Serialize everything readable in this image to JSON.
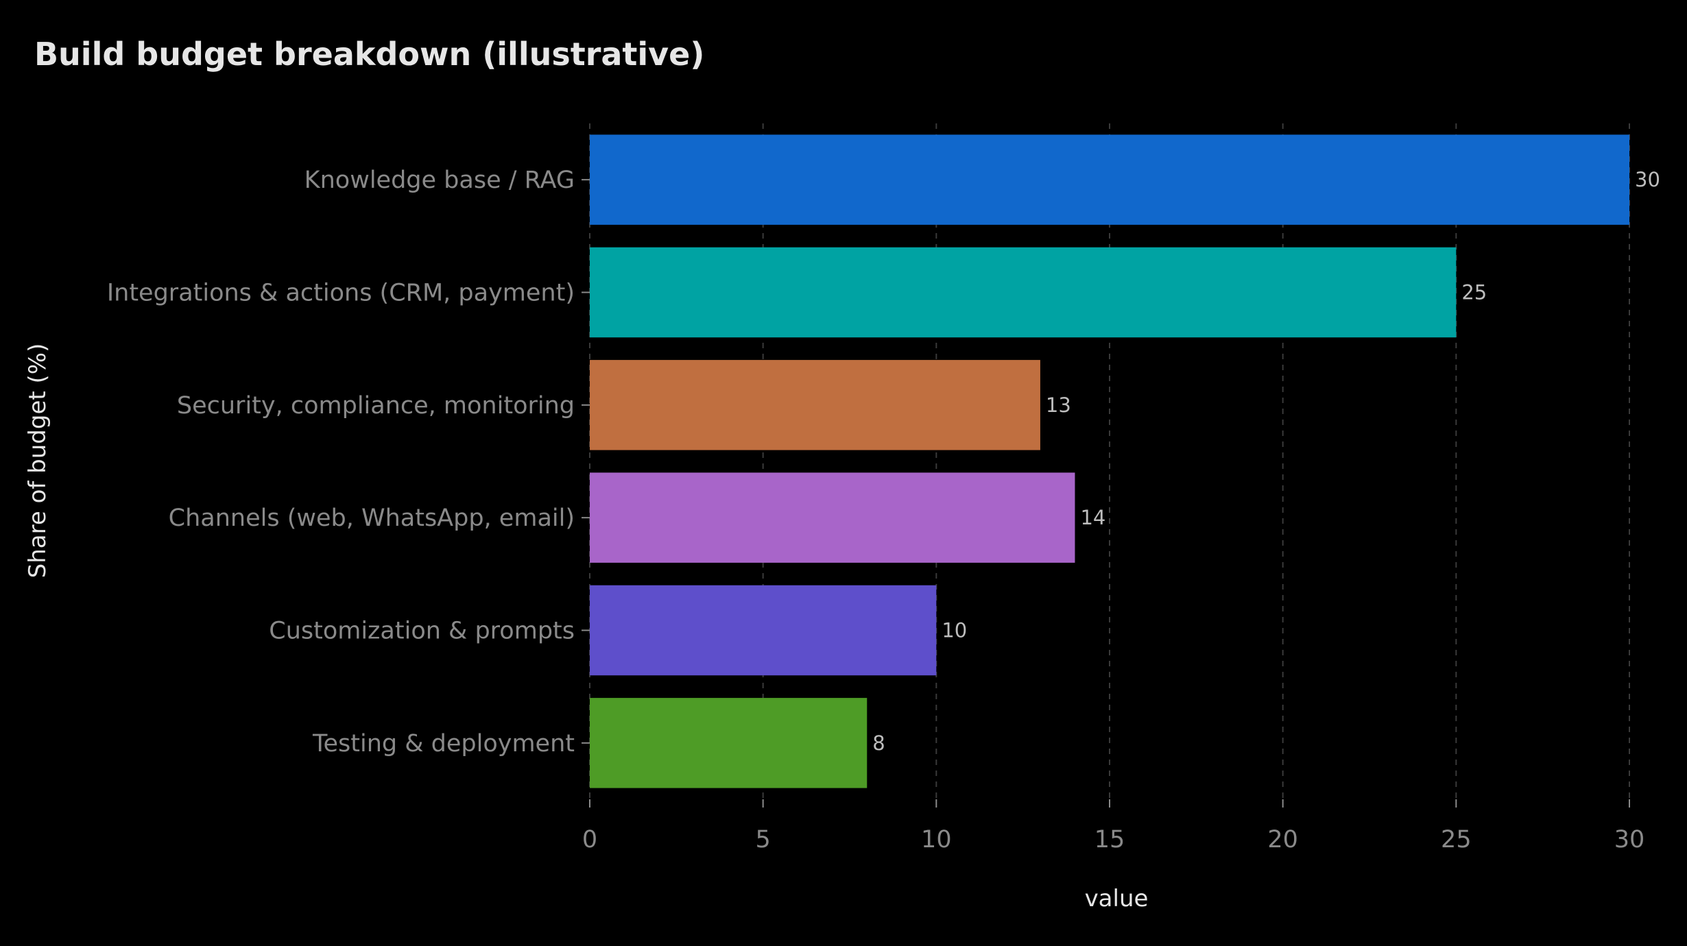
{
  "chart_data": {
    "type": "bar",
    "orientation": "horizontal",
    "title": "Build budget breakdown (illustrative)",
    "xlabel": "value",
    "ylabel": "Share of budget (%)",
    "categories": [
      "Knowledge base / RAG",
      "Integrations & actions (CRM, payment)",
      "Security, compliance, monitoring",
      "Channels (web, WhatsApp, email)",
      "Customization & prompts",
      "Testing & deployment"
    ],
    "values": [
      30,
      25,
      13,
      14,
      10,
      8
    ],
    "colors": [
      "#1168cc",
      "#00a3a3",
      "#c06f40",
      "#a865c9",
      "#5e4fcb",
      "#4e9c26"
    ],
    "xlim": [
      0,
      30
    ],
    "xticks": [
      0,
      5,
      10,
      15,
      20,
      25,
      30
    ],
    "grid": "vertical dashed",
    "legend": "none",
    "data_labels": true,
    "background": "#000000"
  }
}
